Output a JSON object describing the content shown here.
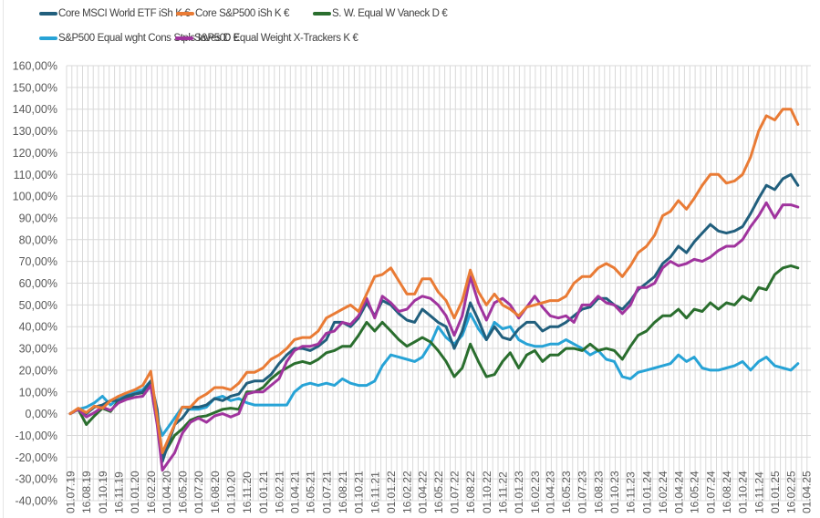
{
  "chart_data": {
    "type": "line",
    "title": "",
    "xlabel": "",
    "ylabel": "",
    "ylim": [
      -40,
      160
    ],
    "y_ticks": [
      160,
      150,
      140,
      130,
      120,
      110,
      100,
      90,
      80,
      70,
      60,
      50,
      40,
      30,
      20,
      10,
      0,
      -10,
      -20,
      -30,
      -40
    ],
    "y_tick_labels": [
      "160,00%",
      "150,00%",
      "140,00%",
      "130,00%",
      "120,00%",
      "110,00%",
      "100,00%",
      "90,00%",
      "80,00%",
      "70,00%",
      "60,00%",
      "50,00%",
      "40,00%",
      "30,00%",
      "20,00%",
      "10,00%",
      "0,00%",
      "-10,00%",
      "-20,00%",
      "-30,00%",
      "-40,00%"
    ],
    "x_tick_labels": [
      "01.07.19",
      "16.08.19",
      "01.10.19",
      "16.11.19",
      "01.01.20",
      "16.02.20",
      "01.04.20",
      "16.05.20",
      "01.07.20",
      "16.08.20",
      "01.10.20",
      "16.11.20",
      "01.01.21",
      "16.02.21",
      "01.04.21",
      "16.05.21",
      "01.07.21",
      "16.08.21",
      "01.10.21",
      "16.11.21",
      "01.01.22",
      "16.02.22",
      "01.04.22",
      "16.05.22",
      "01.07.22",
      "16.08.22",
      "01.10.22",
      "16.11.22",
      "01.01.23",
      "16.02.23",
      "01.04.23",
      "16.05.23",
      "01.07.23",
      "16.08.23",
      "01.10.23",
      "16.11.23",
      "01.01.24",
      "16.02.24",
      "01.04.24",
      "16.05.24",
      "01.07.24",
      "16.08.24",
      "01.10.24",
      "16.11.24",
      "01.01.25",
      "16.02.25",
      "01.04.25"
    ],
    "grid": true,
    "legend_position": "top",
    "x": [
      "01.07.19",
      "24.07.19",
      "16.08.19",
      "08.09.19",
      "01.10.19",
      "24.10.19",
      "16.11.19",
      "08.12.19",
      "01.01.20",
      "24.01.20",
      "16.02.20",
      "05.03.20",
      "20.03.20",
      "24.04.20",
      "16.05.20",
      "08.06.20",
      "01.07.20",
      "24.07.20",
      "16.08.20",
      "08.09.20",
      "01.10.20",
      "24.10.20",
      "16.11.20",
      "08.12.20",
      "01.01.21",
      "24.01.21",
      "16.02.21",
      "10.03.21",
      "01.04.21",
      "24.04.21",
      "16.05.21",
      "08.06.21",
      "01.07.21",
      "24.07.21",
      "16.08.21",
      "08.09.21",
      "01.10.21",
      "24.10.21",
      "16.11.21",
      "08.12.21",
      "01.01.22",
      "24.01.22",
      "16.02.22",
      "10.03.22",
      "01.04.22",
      "24.04.22",
      "16.05.22",
      "08.06.22",
      "01.07.22",
      "24.07.22",
      "16.08.22",
      "08.09.22",
      "01.10.22",
      "24.10.22",
      "16.11.22",
      "08.12.22",
      "01.01.23",
      "24.01.23",
      "16.02.23",
      "10.03.23",
      "01.04.23",
      "24.04.23",
      "16.05.23",
      "08.06.23",
      "01.07.23",
      "24.07.23",
      "16.08.23",
      "08.09.23",
      "01.10.23",
      "24.10.23",
      "16.11.23",
      "08.12.23",
      "01.01.24",
      "24.01.24",
      "16.02.24",
      "09.03.24",
      "01.04.24",
      "24.04.24",
      "16.05.24",
      "08.06.24",
      "01.07.24",
      "24.07.24",
      "16.08.24",
      "08.09.24",
      "01.10.24",
      "24.10.24",
      "16.11.24",
      "08.12.24",
      "01.01.25",
      "24.01.25",
      "16.02.25",
      "08.03.25"
    ],
    "series": [
      {
        "name": "Core MSCI World ETF iSh K €",
        "color": "#215f7d",
        "values": [
          0,
          2,
          0,
          3,
          4,
          6,
          6,
          8,
          9,
          10,
          15,
          2,
          -22,
          -5,
          -2,
          3,
          3,
          4,
          7,
          6,
          8,
          9,
          14,
          15,
          15,
          18,
          23,
          27,
          30,
          30,
          29,
          31,
          34,
          42,
          42,
          40,
          44,
          51,
          45,
          52,
          50,
          46,
          43,
          42,
          48,
          45,
          42,
          40,
          30,
          38,
          51,
          43,
          34,
          40,
          35,
          34,
          39,
          42,
          42,
          38,
          40,
          40,
          42,
          45,
          48,
          49,
          53,
          53,
          50,
          48,
          52,
          57,
          60,
          63,
          69,
          72,
          77,
          74,
          79,
          83,
          87,
          84,
          83,
          84,
          86,
          92,
          99,
          105,
          103,
          108,
          110,
          105
        ]
      },
      {
        "name": "Core S&P500 iSh K €",
        "color": "#e97b35",
        "values": [
          0,
          2.5,
          0.5,
          3.5,
          2.5,
          6,
          8,
          9.5,
          11,
          13,
          19.5,
          -2,
          -18,
          -5,
          3,
          3,
          7,
          9,
          12,
          12,
          11,
          14,
          19,
          19,
          21,
          25,
          27,
          30,
          34,
          35,
          35,
          38,
          44,
          46,
          48,
          50,
          47,
          55,
          63,
          64,
          67,
          61,
          55,
          55,
          62,
          62,
          56,
          52,
          44,
          52,
          66,
          56,
          50,
          55,
          50,
          48,
          45,
          49,
          50,
          51,
          52,
          52,
          54,
          60,
          63,
          63,
          67,
          69,
          67,
          63,
          68,
          74,
          77,
          82,
          91,
          93,
          98,
          94,
          99,
          105,
          110,
          110,
          106,
          107,
          110,
          118,
          130,
          137,
          135,
          140,
          140,
          133
        ]
      },
      {
        "name": "S. W. Equal W Vaneck D €",
        "color": "#2a6e2e",
        "values": [
          0,
          2,
          -5,
          -1,
          2.5,
          1,
          6,
          7,
          9,
          9.6,
          13,
          -4,
          -20,
          -10,
          -7,
          -3,
          -1.5,
          -1,
          0.5,
          2,
          2.5,
          2,
          10,
          10,
          12,
          16,
          19,
          21,
          23,
          24,
          23,
          25,
          28,
          29,
          31,
          31,
          36,
          42,
          38,
          42,
          38,
          34,
          31,
          33,
          35,
          33,
          29,
          24,
          17,
          21,
          32,
          24,
          17,
          18,
          24,
          28,
          21,
          27,
          29,
          24,
          27,
          27,
          30,
          30,
          29,
          32,
          29,
          30,
          29,
          25,
          31,
          36,
          38,
          42,
          45,
          45,
          48,
          44,
          48,
          47,
          51,
          48,
          51,
          50,
          54,
          52,
          58,
          57,
          64,
          67,
          68,
          67
        ]
      },
      {
        "name": "S&P500 Equal wght Cons Stpls Inves D €",
        "color": "#27a3d6",
        "values": [
          0,
          2,
          3,
          5,
          8,
          4,
          7,
          9,
          10,
          11,
          15,
          -3,
          -10,
          -2,
          3,
          2,
          2,
          3,
          7,
          8,
          6,
          7,
          5,
          4,
          4,
          4,
          4,
          4,
          10,
          13,
          14,
          13,
          14,
          13,
          16,
          14,
          13,
          13,
          15,
          22,
          27,
          26,
          25,
          24,
          26,
          32,
          40,
          35,
          32,
          36,
          46,
          39,
          34,
          42,
          39,
          40,
          34,
          32,
          31,
          31,
          32,
          32,
          34,
          32,
          30,
          27,
          29,
          25,
          24,
          17,
          16,
          19,
          20,
          21,
          22,
          23,
          27,
          24,
          26,
          21,
          20,
          20,
          21,
          22,
          24,
          20,
          24,
          26,
          22,
          21,
          20,
          23
        ]
      },
      {
        "name": "S&P500 Equal Weight X-Trackers K €",
        "color": "#a0349e",
        "values": [
          0,
          2,
          -1.5,
          0.5,
          3,
          1.5,
          5,
          6.5,
          7.5,
          8,
          13,
          -5,
          -26,
          -18,
          -9,
          -4,
          -2,
          -4,
          -1,
          0,
          -1.5,
          0,
          9,
          10,
          10,
          13,
          16,
          24,
          29,
          31,
          31,
          32,
          37,
          38,
          42,
          41,
          45,
          53,
          44,
          54,
          51,
          47,
          48,
          52,
          54,
          53,
          50,
          45,
          36,
          45,
          63,
          51,
          43,
          51,
          53,
          50,
          44,
          49,
          54,
          49,
          45,
          44,
          45,
          42,
          50,
          50,
          54,
          51,
          50,
          46,
          50,
          58,
          58,
          60,
          67,
          70,
          68,
          69,
          71,
          70,
          72,
          75,
          77,
          77,
          80,
          86,
          91,
          97,
          90,
          96,
          96,
          95
        ]
      }
    ]
  }
}
